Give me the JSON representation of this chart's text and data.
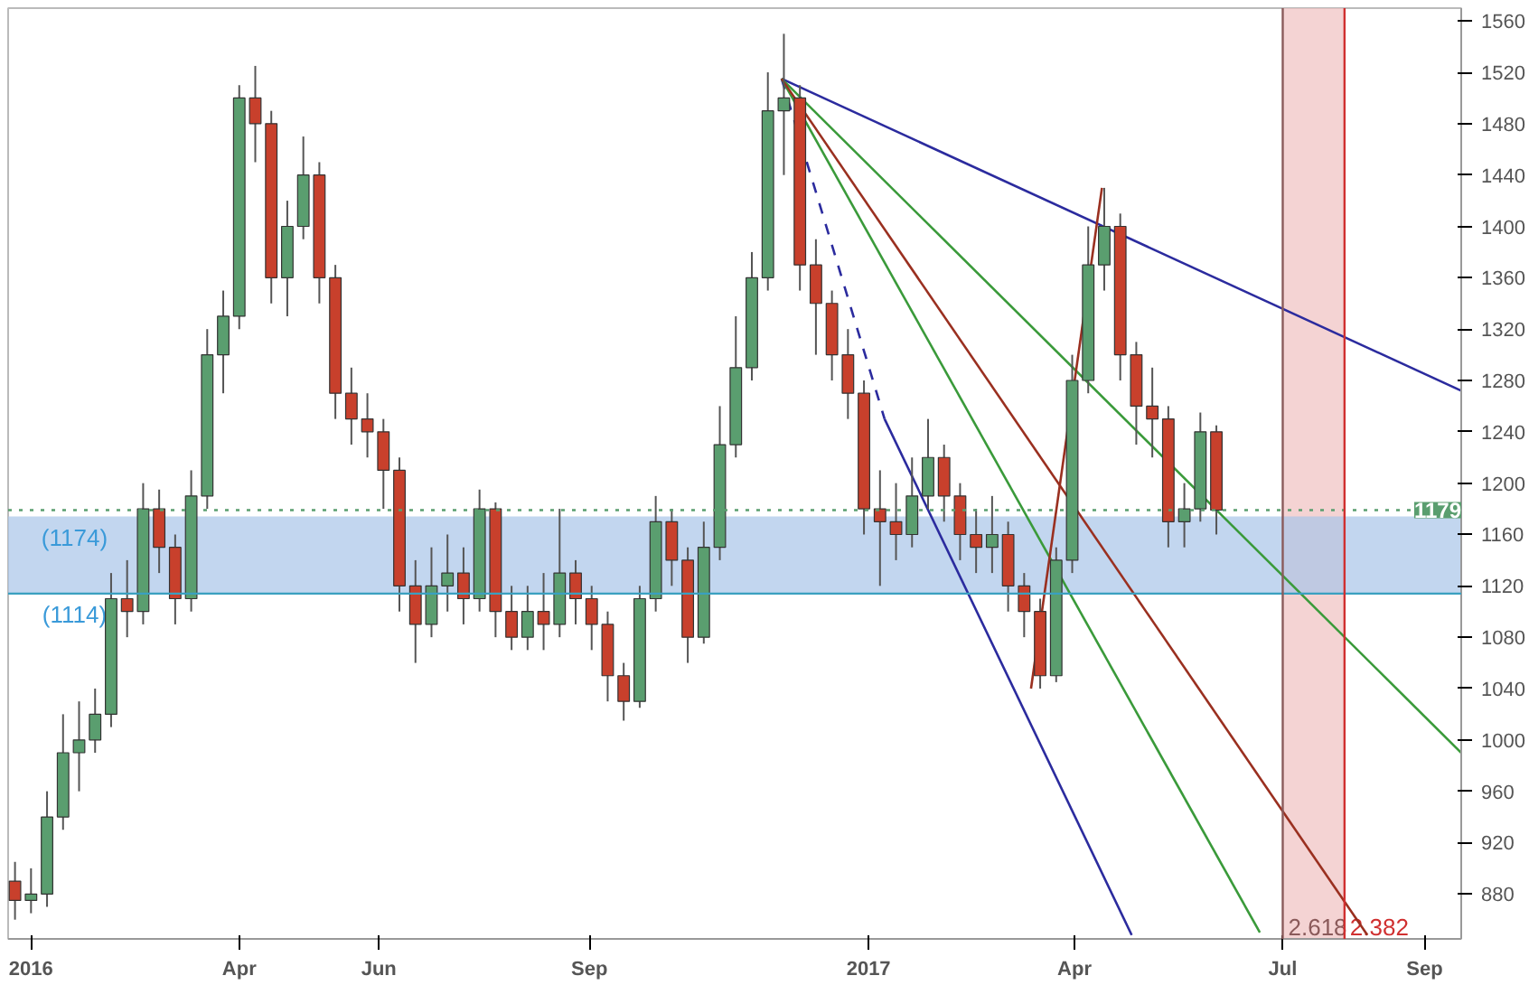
{
  "chart_data": {
    "type": "candlestick",
    "x": [
      "2015-12-25",
      "2016-01-01",
      "2016-01-08",
      "2016-01-15",
      "2016-01-22",
      "2016-01-29",
      "2016-02-05",
      "2016-02-12",
      "2016-02-19",
      "2016-02-26",
      "2016-03-04",
      "2016-03-11",
      "2016-03-18",
      "2016-03-25",
      "2016-04-01",
      "2016-04-08",
      "2016-04-15",
      "2016-04-22",
      "2016-04-29",
      "2016-05-06",
      "2016-05-13",
      "2016-05-20",
      "2016-05-27",
      "2016-06-03",
      "2016-06-10",
      "2016-06-17",
      "2016-06-24",
      "2016-07-01",
      "2016-07-08",
      "2016-07-15",
      "2016-07-22",
      "2016-07-29",
      "2016-08-05",
      "2016-08-12",
      "2016-08-19",
      "2016-08-26",
      "2016-09-02",
      "2016-09-09",
      "2016-09-16",
      "2016-09-23",
      "2016-09-30",
      "2016-10-07",
      "2016-10-14",
      "2016-10-21",
      "2016-10-28",
      "2016-11-04",
      "2016-11-11",
      "2016-11-18",
      "2016-11-25",
      "2016-12-02",
      "2016-12-09",
      "2016-12-16",
      "2016-12-23",
      "2016-12-30",
      "2017-01-06",
      "2017-01-13",
      "2017-01-20",
      "2017-01-27",
      "2017-02-03",
      "2017-02-10",
      "2017-02-17",
      "2017-02-24",
      "2017-03-03",
      "2017-03-10",
      "2017-03-17",
      "2017-03-24",
      "2017-03-31",
      "2017-04-07",
      "2017-04-14",
      "2017-04-21",
      "2017-04-28",
      "2017-05-05",
      "2017-05-12",
      "2017-05-19",
      "2017-05-26",
      "2017-06-02"
    ],
    "ohlc": [
      [
        890,
        905,
        860,
        875
      ],
      [
        875,
        900,
        865,
        880
      ],
      [
        880,
        960,
        870,
        940
      ],
      [
        940,
        1020,
        930,
        990
      ],
      [
        990,
        1030,
        960,
        1000
      ],
      [
        1000,
        1040,
        990,
        1020
      ],
      [
        1020,
        1130,
        1010,
        1110
      ],
      [
        1110,
        1140,
        1080,
        1100
      ],
      [
        1100,
        1200,
        1090,
        1180
      ],
      [
        1180,
        1195,
        1130,
        1150
      ],
      [
        1150,
        1160,
        1090,
        1110
      ],
      [
        1110,
        1210,
        1100,
        1190
      ],
      [
        1190,
        1320,
        1180,
        1300
      ],
      [
        1300,
        1350,
        1270,
        1330
      ],
      [
        1330,
        1510,
        1320,
        1500
      ],
      [
        1500,
        1525,
        1450,
        1480
      ],
      [
        1480,
        1490,
        1340,
        1360
      ],
      [
        1360,
        1420,
        1330,
        1400
      ],
      [
        1400,
        1470,
        1390,
        1440
      ],
      [
        1440,
        1450,
        1340,
        1360
      ],
      [
        1360,
        1370,
        1250,
        1270
      ],
      [
        1270,
        1290,
        1230,
        1250
      ],
      [
        1250,
        1270,
        1220,
        1240
      ],
      [
        1240,
        1250,
        1180,
        1210
      ],
      [
        1210,
        1220,
        1100,
        1120
      ],
      [
        1120,
        1140,
        1060,
        1090
      ],
      [
        1090,
        1150,
        1080,
        1120
      ],
      [
        1120,
        1160,
        1100,
        1130
      ],
      [
        1130,
        1150,
        1090,
        1110
      ],
      [
        1110,
        1195,
        1100,
        1180
      ],
      [
        1180,
        1185,
        1080,
        1100
      ],
      [
        1100,
        1120,
        1070,
        1080
      ],
      [
        1080,
        1120,
        1070,
        1100
      ],
      [
        1100,
        1130,
        1070,
        1090
      ],
      [
        1090,
        1180,
        1080,
        1130
      ],
      [
        1130,
        1140,
        1090,
        1110
      ],
      [
        1110,
        1120,
        1070,
        1090
      ],
      [
        1090,
        1100,
        1030,
        1050
      ],
      [
        1050,
        1060,
        1015,
        1030
      ],
      [
        1030,
        1120,
        1025,
        1110
      ],
      [
        1110,
        1190,
        1100,
        1170
      ],
      [
        1170,
        1180,
        1120,
        1140
      ],
      [
        1140,
        1150,
        1060,
        1080
      ],
      [
        1080,
        1170,
        1075,
        1150
      ],
      [
        1150,
        1260,
        1140,
        1230
      ],
      [
        1230,
        1330,
        1220,
        1290
      ],
      [
        1290,
        1380,
        1280,
        1360
      ],
      [
        1360,
        1520,
        1350,
        1490
      ],
      [
        1490,
        1550,
        1440,
        1500
      ],
      [
        1500,
        1510,
        1350,
        1370
      ],
      [
        1370,
        1390,
        1300,
        1340
      ],
      [
        1340,
        1350,
        1280,
        1300
      ],
      [
        1300,
        1320,
        1250,
        1270
      ],
      [
        1270,
        1280,
        1160,
        1180
      ],
      [
        1180,
        1210,
        1120,
        1170
      ],
      [
        1170,
        1200,
        1140,
        1160
      ],
      [
        1160,
        1220,
        1150,
        1190
      ],
      [
        1190,
        1250,
        1180,
        1220
      ],
      [
        1220,
        1230,
        1170,
        1190
      ],
      [
        1190,
        1200,
        1140,
        1160
      ],
      [
        1160,
        1180,
        1130,
        1150
      ],
      [
        1150,
        1190,
        1130,
        1160
      ],
      [
        1160,
        1170,
        1100,
        1120
      ],
      [
        1120,
        1130,
        1080,
        1100
      ],
      [
        1100,
        1110,
        1040,
        1050
      ],
      [
        1050,
        1150,
        1045,
        1140
      ],
      [
        1140,
        1300,
        1130,
        1280
      ],
      [
        1280,
        1400,
        1270,
        1370
      ],
      [
        1370,
        1430,
        1350,
        1400
      ],
      [
        1400,
        1410,
        1280,
        1300
      ],
      [
        1300,
        1310,
        1230,
        1260
      ],
      [
        1260,
        1290,
        1220,
        1250
      ],
      [
        1250,
        1260,
        1150,
        1170
      ],
      [
        1170,
        1200,
        1150,
        1180
      ],
      [
        1180,
        1255,
        1170,
        1240
      ],
      [
        1240,
        1245,
        1160,
        1179
      ]
    ],
    "series": [
      {
        "type": "line",
        "color": "#2b2b9e",
        "x": [
          "2016-11-24",
          "2017-09-17"
        ],
        "values": [
          1515,
          1272
        ]
      },
      {
        "type": "line",
        "color": "#2b2b9e",
        "line_style": "dashed",
        "x": [
          "2016-11-24",
          "2017-01-08"
        ],
        "values": [
          1515,
          1250
        ]
      },
      {
        "type": "line",
        "color": "#2b2b9e",
        "x": [
          "2017-01-08",
          "2017-04-26"
        ],
        "values": [
          1250,
          848
        ]
      },
      {
        "type": "line",
        "color": "#3a9a3a",
        "x": [
          "2016-11-24",
          "2017-09-17"
        ],
        "values": [
          1515,
          990
        ]
      },
      {
        "type": "line",
        "color": "#3a9a3a",
        "x": [
          "2016-11-24",
          "2017-06-21"
        ],
        "values": [
          1515,
          850
        ]
      },
      {
        "type": "line",
        "color": "#9a3020",
        "x": [
          "2016-11-24",
          "2017-08-07"
        ],
        "values": [
          1515,
          848
        ]
      },
      {
        "type": "line",
        "color": "#9a3020",
        "x": [
          "2017-03-13",
          "2017-04-13"
        ],
        "values": [
          1040,
          1430
        ]
      }
    ],
    "xlim": [
      "2015-12-22",
      "2017-09-17"
    ],
    "xticks": [
      {
        "value": "2016-01-01",
        "label": "2016"
      },
      {
        "value": "2016-04-01",
        "label": "Apr"
      },
      {
        "value": "2016-06-01",
        "label": "Jun"
      },
      {
        "value": "2016-09-01",
        "label": "Sep"
      },
      {
        "value": "2017-01-01",
        "label": "2017"
      },
      {
        "value": "2017-04-01",
        "label": "Apr"
      },
      {
        "value": "2017-07-01",
        "label": "Jul"
      },
      {
        "value": "2017-09-01",
        "label": "Sep"
      }
    ],
    "ylim": [
      845,
      1570
    ],
    "yticks": [
      880,
      920,
      960,
      1000,
      1040,
      1080,
      1120,
      1160,
      1200,
      1240,
      1280,
      1320,
      1360,
      1400,
      1440,
      1480,
      1520,
      1560
    ],
    "grid": false,
    "ref_lines": [
      {
        "axis": "y",
        "value": 1179,
        "label": "1179",
        "color": "#5a9e6f",
        "line_style": "dotted"
      },
      {
        "axis": "y",
        "value": 1114,
        "color": "#3aa0c0"
      },
      {
        "axis": "x",
        "value": "2017-07-01",
        "label": "2.618",
        "color": "#8a5a5a"
      },
      {
        "axis": "x",
        "value": "2017-07-28",
        "label": "2.382",
        "color": "#d03030"
      }
    ],
    "bands": [
      {
        "axis": "x",
        "from": "2017-07-01",
        "to": "2017-07-28",
        "color": "#f0c0c0"
      },
      {
        "axis": "y",
        "from": 1114,
        "to": 1174,
        "color": "#a8c4e8"
      }
    ],
    "annotations": [
      {
        "text": "(1174)",
        "x": "2016-01-20",
        "y": 1174
      },
      {
        "text": "(1114)",
        "x": "2016-01-20",
        "y": 1114
      }
    ]
  }
}
